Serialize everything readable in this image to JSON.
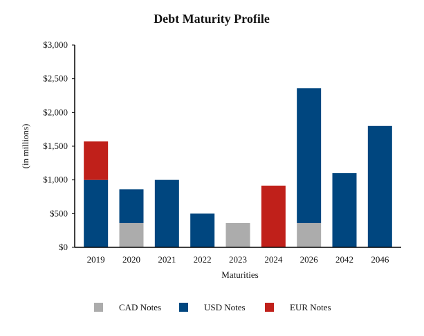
{
  "chart_data": {
    "type": "bar",
    "stacked": true,
    "title": "Debt Maturity Profile",
    "xlabel": "Maturities",
    "ylabel": "(in millions)",
    "ylim": [
      0,
      3000
    ],
    "yticks": [
      0,
      500,
      1000,
      1500,
      2000,
      2500,
      3000
    ],
    "ytick_labels": [
      "$0",
      "$500",
      "$1,000",
      "$1,500",
      "$2,000",
      "$2,500",
      "$3,000"
    ],
    "grid": false,
    "legend_position": "bottom",
    "categories": [
      "2019",
      "2020",
      "2021",
      "2022",
      "2023",
      "2024",
      "2026",
      "2042",
      "2046"
    ],
    "series": [
      {
        "name": "CAD Notes",
        "color": "#acacac",
        "values": [
          0,
          360,
          0,
          0,
          360,
          0,
          360,
          0,
          0
        ]
      },
      {
        "name": "USD Notes",
        "color": "#00467f",
        "values": [
          1000,
          500,
          1000,
          500,
          0,
          0,
          2000,
          1100,
          1800
        ]
      },
      {
        "name": "EUR Notes",
        "color": "#c0201a",
        "values": [
          570,
          0,
          0,
          0,
          0,
          915,
          0,
          0,
          0
        ]
      }
    ]
  }
}
